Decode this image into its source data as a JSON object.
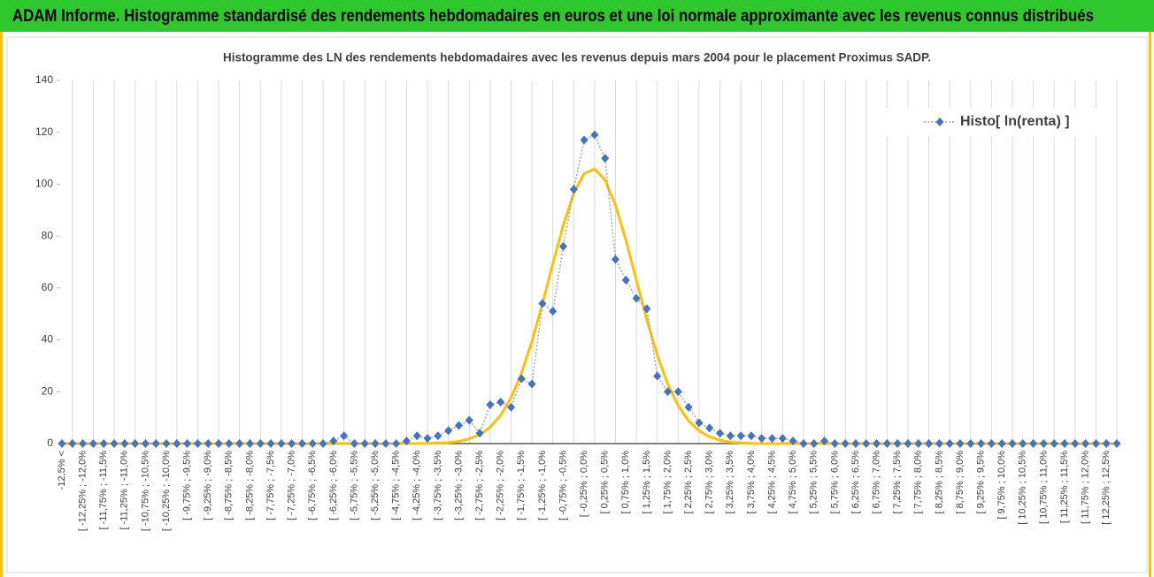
{
  "header": {
    "title": "ADAM Informe. Histogramme standardisé des rendements hebdomadaires en euros et une loi normale approximante avec les revenus connus distribués"
  },
  "chart_data": {
    "type": "line",
    "title": "Histogramme des LN des rendements hebdomadaires avec les revenus depuis mars 2004 pour le placement Proximus SADP.",
    "categories": [
      "-12,5% <",
      null,
      "[ -12,25% ; -12,0%",
      null,
      "[ -11,75% ; -11,5%",
      null,
      "[ -11,25% ; -11,0%",
      null,
      "[ -10,75% ; -10,5%",
      null,
      "[ -10,25% ; -10,0%",
      null,
      "[ -9,75% ; -9,5%",
      null,
      "[ -9,25% ; -9,0%",
      null,
      "[ -8,75% ; -8,5%",
      null,
      "[ -8,25% ; -8,0%",
      null,
      "[ -7,75% ; -7,5%",
      null,
      "[ -7,25% ; -7,0%",
      null,
      "[ -6,75% ; -6,5%",
      null,
      "[ -6,25% ; -6,0%",
      null,
      "[ -5,75% ; -5,5%",
      null,
      "[ -5,25% ; -5,0%",
      null,
      "[ -4,75% ; -4,5%",
      null,
      "[ -4,25% ; -4,0%",
      null,
      "[ -3,75% ; -3,5%",
      null,
      "[ -3,25% ; -3,0%",
      null,
      "[ -2,75% ; -2,5%",
      null,
      "[ -2,25% ; -2,0%",
      null,
      "[ -1,75% ; -1,5%",
      null,
      "[ -1,25% ; -1,0%",
      null,
      "[ -0,75% ; -0,5%",
      null,
      "[ -0,25% ; 0,0%",
      null,
      "[ 0,25% ; 0,5%",
      null,
      "[ 0,75% ; 1,0%",
      null,
      "[ 1,25% ; 1,5%",
      null,
      "[ 1,75% ; 2,0%",
      null,
      "[ 2,25% ; 2,5%",
      null,
      "[ 2,75% ; 3,0%",
      null,
      "[ 3,25% ; 3,5%",
      null,
      "[ 3,75% ; 4,0%",
      null,
      "[ 4,25% ; 4,5%",
      null,
      "[ 4,75% ; 5,0%",
      null,
      "[ 5,25% ; 5,5%",
      null,
      "[ 5,75% ; 6,0%",
      null,
      "[ 6,25% ; 6,5%",
      null,
      "[ 6,75% ; 7,0%",
      null,
      "[ 7,25% ; 7,5%",
      null,
      "[ 7,75% ; 8,0%",
      null,
      "[ 8,25% ; 8,5%",
      null,
      "[ 8,75% ; 9,0%",
      null,
      "[ 9,25% ; 9,5%",
      null,
      "[ 9,75% ; 10,0%",
      null,
      "[ 10,25% ; 10,5%",
      null,
      "[ 10,75% ; 11,0%",
      null,
      "[ 11,25% ; 11,5%",
      null,
      "[ 11,75% ; 12,0%",
      null,
      "[ 12,25% ; 12,5%",
      null
    ],
    "series": [
      {
        "name": "Histo[ ln(renta) ]",
        "color": "#4472c4",
        "line_color": "#a5a5a5",
        "marker": "diamond",
        "values": [
          0,
          0,
          0,
          0,
          0,
          0,
          0,
          0,
          0,
          0,
          0,
          0,
          0,
          0,
          0,
          0,
          0,
          0,
          0,
          0,
          0,
          0,
          0,
          0,
          0,
          0,
          1,
          3,
          0,
          0,
          0,
          0,
          0,
          1,
          3,
          2,
          3,
          5,
          7,
          9,
          4,
          15,
          16,
          14,
          25,
          23,
          54,
          51,
          76,
          98,
          117,
          119,
          110,
          71,
          63,
          56,
          52,
          26,
          20,
          20,
          14,
          8,
          6,
          4,
          3,
          3,
          3,
          2,
          2,
          2,
          1,
          0,
          0,
          1,
          0,
          0,
          0,
          0,
          0,
          0,
          0,
          0,
          0,
          0,
          0,
          0,
          0,
          0,
          0,
          0,
          0,
          0,
          0,
          0,
          0,
          0,
          0,
          0,
          0,
          0,
          0,
          0
        ]
      },
      {
        "color": "#ffc000",
        "values": [
          0,
          0,
          0,
          0,
          0,
          0,
          0,
          0,
          0,
          0,
          0,
          0,
          0,
          0,
          0,
          0,
          0,
          0,
          0,
          0,
          0,
          0,
          0,
          0,
          0,
          0,
          0,
          0,
          0,
          0,
          0,
          0,
          0,
          0,
          0,
          0.1,
          0.2,
          0.4,
          0.8,
          1.8,
          3.4,
          6.3,
          10.8,
          17.7,
          27.1,
          39.3,
          53.8,
          69.3,
          84.1,
          96.4,
          104,
          105.9,
          101.6,
          91.9,
          78.4,
          63,
          47.8,
          34.1,
          23,
          14.6,
          8.8,
          4.9,
          2.6,
          1.3,
          0.6,
          0.3,
          0.1,
          0,
          0,
          0,
          0,
          0,
          0,
          0,
          0,
          0,
          0,
          0,
          0,
          0,
          0,
          0,
          0,
          0,
          0,
          0,
          0,
          0,
          0,
          0,
          0,
          0,
          0,
          0,
          0,
          0,
          0,
          0,
          0,
          0,
          0,
          0
        ]
      }
    ],
    "ylim": [
      0,
      140
    ],
    "yticks": [
      0,
      20,
      40,
      60,
      80,
      100,
      120,
      140
    ],
    "grid": "x",
    "legend": "top-right"
  }
}
